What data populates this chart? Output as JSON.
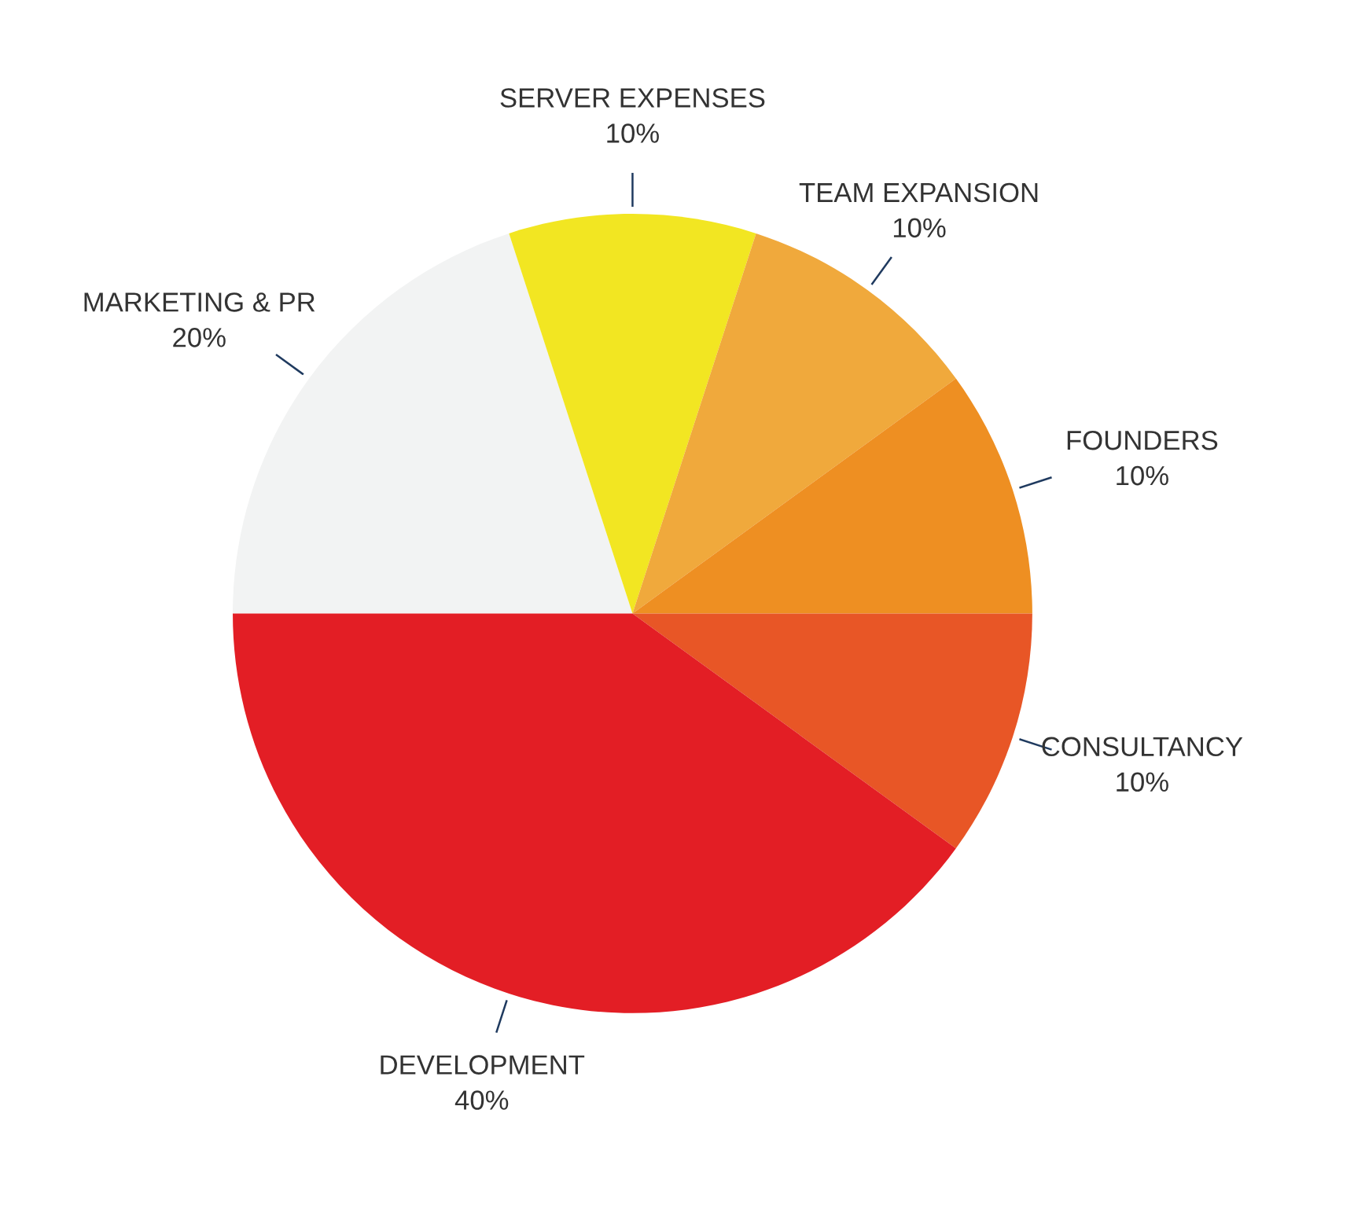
{
  "chart_data": {
    "type": "pie",
    "categories": [
      "MARKETING & PR",
      "SERVER EXPENSES",
      "TEAM EXPANSION",
      "FOUNDERS",
      "CONSULTANCY",
      "DEVELOPMENT"
    ],
    "values": [
      20,
      10,
      10,
      10,
      10,
      40
    ],
    "colors": [
      "#f2f3f3",
      "#f2e622",
      "#f0a93c",
      "#ee8f22",
      "#e85626",
      "#e31e25"
    ],
    "value_labels": [
      "20%",
      "10%",
      "10%",
      "10%",
      "10%",
      "40%"
    ],
    "legend": false
  }
}
